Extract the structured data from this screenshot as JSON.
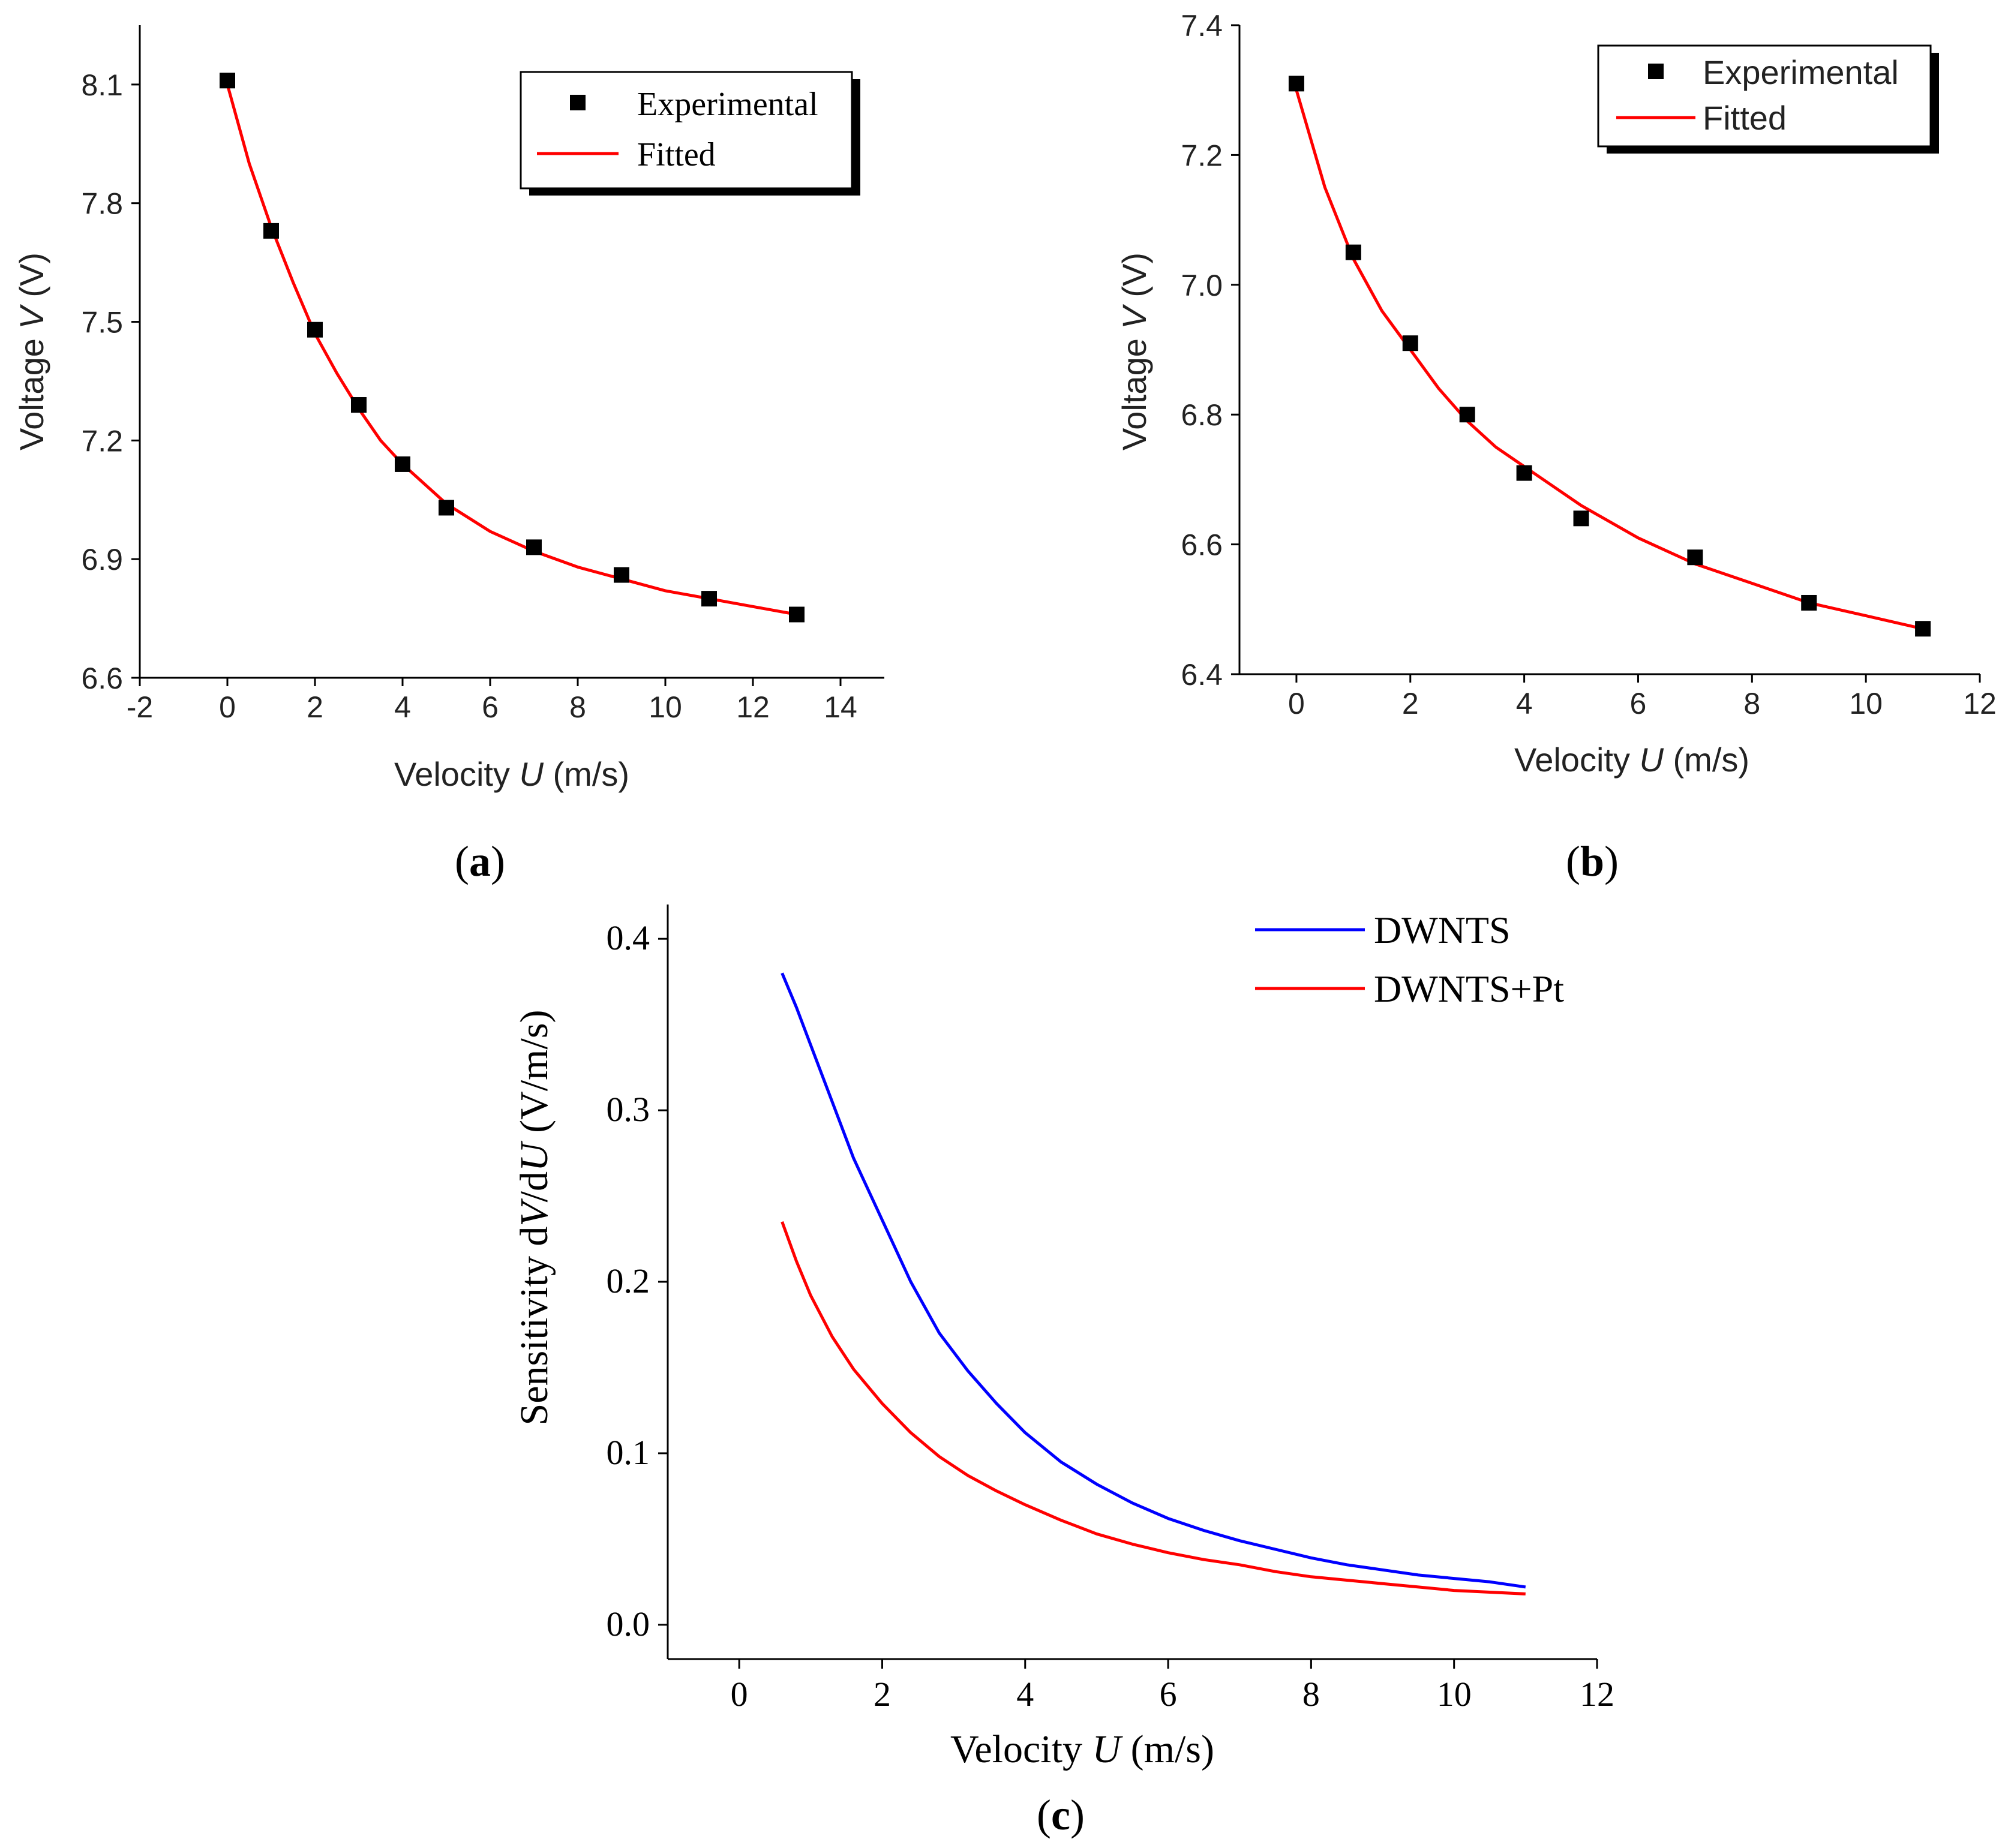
{
  "chart_data": [
    {
      "id": "a",
      "type": "scatter",
      "panel_label": "a",
      "xlabel_pre": "Velocity ",
      "xlabel_var": "U",
      "xlabel_post": " (m/s)",
      "ylabel_pre": "Voltage ",
      "ylabel_var": "V",
      "ylabel_post": " (V)",
      "xlim": [
        -2,
        15
      ],
      "ylim": [
        6.6,
        8.25
      ],
      "xticks": [
        -2,
        0,
        2,
        4,
        6,
        8,
        10,
        12,
        14
      ],
      "yticks": [
        6.6,
        6.9,
        7.2,
        7.5,
        7.8,
        8.1
      ],
      "xtick_labels": [
        "-2",
        "0",
        "2",
        "4",
        "6",
        "8",
        "10",
        "12",
        "14"
      ],
      "ytick_labels": [
        "6.6",
        "6.9",
        "7.2",
        "7.5",
        "7.8",
        "8.1"
      ],
      "legend": {
        "position": "top-right",
        "experimental": "Experimental",
        "fitted": "Fitted"
      },
      "series": [
        {
          "name": "Experimental",
          "kind": "markers",
          "x": [
            0,
            1,
            2,
            3,
            4,
            5,
            7,
            9,
            11,
            13
          ],
          "y": [
            8.11,
            7.73,
            7.48,
            7.29,
            7.14,
            7.03,
            6.93,
            6.86,
            6.8,
            6.76
          ]
        },
        {
          "name": "Fitted",
          "kind": "line",
          "color": "#ff0000",
          "x": [
            0,
            0.5,
            1,
            1.5,
            2,
            2.5,
            3,
            3.5,
            4,
            5,
            6,
            7,
            8,
            9,
            10,
            11,
            12,
            13
          ],
          "y": [
            8.1,
            7.9,
            7.74,
            7.6,
            7.47,
            7.37,
            7.28,
            7.2,
            7.14,
            7.04,
            6.97,
            6.92,
            6.88,
            6.85,
            6.82,
            6.8,
            6.78,
            6.76
          ]
        }
      ]
    },
    {
      "id": "b",
      "type": "scatter",
      "panel_label": "b",
      "xlabel_pre": "Velocity ",
      "xlabel_var": "U",
      "xlabel_post": " (m/s)",
      "ylabel_pre": "Voltage ",
      "ylabel_var": "V",
      "ylabel_post": " (V)",
      "xlim": [
        -1,
        12
      ],
      "ylim": [
        6.4,
        7.4
      ],
      "xticks": [
        0,
        2,
        4,
        6,
        8,
        10,
        12
      ],
      "yticks": [
        6.4,
        6.6,
        6.8,
        7.0,
        7.2,
        7.4
      ],
      "xtick_labels": [
        "0",
        "2",
        "4",
        "6",
        "8",
        "10",
        "12"
      ],
      "ytick_labels": [
        "6.4",
        "6.6",
        "6.8",
        "7.0",
        "7.2",
        "7.4"
      ],
      "legend": {
        "position": "top-right",
        "experimental": "Experimental",
        "fitted": "Fitted"
      },
      "series": [
        {
          "name": "Experimental",
          "kind": "markers",
          "x": [
            0,
            1,
            2,
            3,
            4,
            5,
            7,
            9,
            11
          ],
          "y": [
            7.31,
            7.05,
            6.91,
            6.8,
            6.71,
            6.64,
            6.58,
            6.51,
            6.47
          ]
        },
        {
          "name": "Fitted",
          "kind": "line",
          "color": "#ff0000",
          "x": [
            0,
            0.5,
            1,
            1.5,
            2,
            2.5,
            3,
            3.5,
            4,
            5,
            6,
            7,
            8,
            9,
            10,
            11
          ],
          "y": [
            7.3,
            7.15,
            7.04,
            6.96,
            6.9,
            6.84,
            6.79,
            6.75,
            6.72,
            6.66,
            6.61,
            6.57,
            6.54,
            6.51,
            6.49,
            6.47
          ]
        }
      ]
    },
    {
      "id": "c",
      "type": "line",
      "panel_label": "c",
      "xlabel_pre": "Velocity ",
      "xlabel_var": "U",
      "xlabel_post": " (m/s)",
      "ylabel_pre": "Sensitivity d",
      "ylabel_var": "V",
      "ylabel_mid": "/d",
      "ylabel_var2": "U",
      "ylabel_post": " (V/m/s)",
      "xlim": [
        -1,
        12
      ],
      "ylim": [
        -0.02,
        0.42
      ],
      "xticks": [
        0,
        2,
        4,
        6,
        8,
        10,
        12
      ],
      "yticks": [
        0.0,
        0.1,
        0.2,
        0.3,
        0.4
      ],
      "xtick_labels": [
        "0",
        "2",
        "4",
        "6",
        "8",
        "10",
        "12"
      ],
      "ytick_labels": [
        "0.0",
        "0.1",
        "0.2",
        "0.3",
        "0.4"
      ],
      "legend": {
        "position": "top-right",
        "dwnts": "DWNTS",
        "dwnts_pt": "DWNTS+Pt"
      },
      "series": [
        {
          "name": "DWNTS",
          "color": "#0000ff",
          "x": [
            0.6,
            0.8,
            1.0,
            1.3,
            1.6,
            2.0,
            2.4,
            2.8,
            3.2,
            3.6,
            4.0,
            4.5,
            5.0,
            5.5,
            6.0,
            6.5,
            7.0,
            7.5,
            8.0,
            8.5,
            9.0,
            9.5,
            10.0,
            10.5,
            11.0
          ],
          "y": [
            0.38,
            0.36,
            0.338,
            0.305,
            0.272,
            0.236,
            0.2,
            0.17,
            0.148,
            0.129,
            0.112,
            0.095,
            0.082,
            0.071,
            0.062,
            0.055,
            0.049,
            0.044,
            0.039,
            0.035,
            0.032,
            0.029,
            0.027,
            0.025,
            0.022
          ]
        },
        {
          "name": "DWNTS+Pt",
          "color": "#ff0000",
          "x": [
            0.6,
            0.8,
            1.0,
            1.3,
            1.6,
            2.0,
            2.4,
            2.8,
            3.2,
            3.6,
            4.0,
            4.5,
            5.0,
            5.5,
            6.0,
            6.5,
            7.0,
            7.5,
            8.0,
            8.5,
            9.0,
            9.5,
            10.0,
            10.5,
            11.0
          ],
          "y": [
            0.235,
            0.212,
            0.192,
            0.168,
            0.149,
            0.129,
            0.112,
            0.098,
            0.087,
            0.078,
            0.07,
            0.061,
            0.053,
            0.047,
            0.042,
            0.038,
            0.035,
            0.031,
            0.028,
            0.026,
            0.024,
            0.022,
            0.02,
            0.019,
            0.018
          ]
        }
      ]
    }
  ]
}
